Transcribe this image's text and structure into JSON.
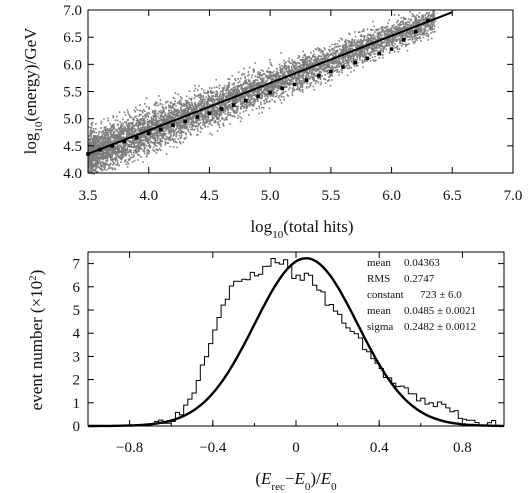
{
  "chart_data": [
    {
      "type": "scatter",
      "xlabel": {
        "pre": "log",
        "sub": "10",
        "post": "(total hits)"
      },
      "ylabel": {
        "pre": "log",
        "sub": "10",
        "post": "(energy)/GeV"
      },
      "xlim": [
        3.5,
        7.0
      ],
      "ylim": [
        4.0,
        7.0
      ],
      "xticks": [
        "3.5",
        "4.0",
        "4.5",
        "5.0",
        "5.5",
        "6.0",
        "6.5",
        "7.0"
      ],
      "yticks": [
        "4.0",
        "4.5",
        "5.0",
        "5.5",
        "6.0",
        "6.5",
        "7.0"
      ],
      "series": [
        {
          "kind": "profile",
          "x": [
            3.5,
            3.6,
            3.7,
            3.8,
            3.9,
            4.0,
            4.1,
            4.2,
            4.3,
            4.4,
            4.5,
            4.6,
            4.7,
            4.8,
            4.9,
            5.0,
            5.1,
            5.2,
            5.3,
            5.4,
            5.5,
            5.6,
            5.7,
            5.8,
            5.9,
            6.0,
            6.1,
            6.2,
            6.3
          ],
          "y": [
            4.35,
            4.43,
            4.5,
            4.58,
            4.65,
            4.73,
            4.8,
            4.88,
            4.95,
            5.03,
            5.1,
            5.18,
            5.25,
            5.33,
            5.41,
            5.48,
            5.56,
            5.63,
            5.71,
            5.79,
            5.87,
            5.95,
            6.03,
            6.11,
            6.2,
            6.28,
            6.45,
            6.6,
            6.8
          ]
        },
        {
          "kind": "fit-line",
          "x": [
            3.5,
            6.5
          ],
          "y": [
            4.35,
            6.96
          ]
        }
      ]
    },
    {
      "type": "line",
      "xlabel": {
        "parts": [
          "(",
          "E",
          "rec",
          "−",
          "E",
          "0",
          ")/",
          "E",
          "0"
        ]
      },
      "ylabel": {
        "pre": "event number (×10",
        "sup": "2",
        "post": ")"
      },
      "xlim": [
        -1.0,
        1.0
      ],
      "ylim": [
        0,
        7.5
      ],
      "xticks": [
        "−0.8",
        "−0.4",
        "0",
        "0.4",
        "0.8"
      ],
      "yticks": [
        "0",
        "1",
        "2",
        "3",
        "4",
        "5",
        "6",
        "7"
      ],
      "series": [
        {
          "kind": "histogram",
          "x": [
            -0.8,
            -0.7,
            -0.6,
            -0.55,
            -0.5,
            -0.45,
            -0.4,
            -0.35,
            -0.3,
            -0.25,
            -0.2,
            -0.15,
            -0.1,
            -0.05,
            0.0,
            0.05,
            0.1,
            0.15,
            0.2,
            0.25,
            0.3,
            0.35,
            0.4,
            0.45,
            0.5,
            0.55,
            0.6,
            0.7,
            0.8,
            0.9
          ],
          "y": [
            0.0,
            0.1,
            0.3,
            0.6,
            1.3,
            2.6,
            4.0,
            5.3,
            6.1,
            6.3,
            6.5,
            6.8,
            7.2,
            7.0,
            6.3,
            6.5,
            6.1,
            5.3,
            4.8,
            4.3,
            3.8,
            3.2,
            2.5,
            2.0,
            1.6,
            1.4,
            1.1,
            0.9,
            0.4,
            0.1
          ]
        },
        {
          "kind": "gaussian-fit",
          "constant": 7.23,
          "mean": 0.0485,
          "sigma": 0.2482
        }
      ],
      "stats": [
        {
          "label": "mean",
          "value": "0.04363"
        },
        {
          "label": "RMS",
          "value": "0.2747"
        },
        {
          "label": "constant",
          "value": "723 ± 6.0"
        },
        {
          "label": "mean",
          "value": "0.0485 ± 0.0021"
        },
        {
          "label": "sigma",
          "value": "0.2482 ± 0.0012"
        }
      ]
    }
  ]
}
